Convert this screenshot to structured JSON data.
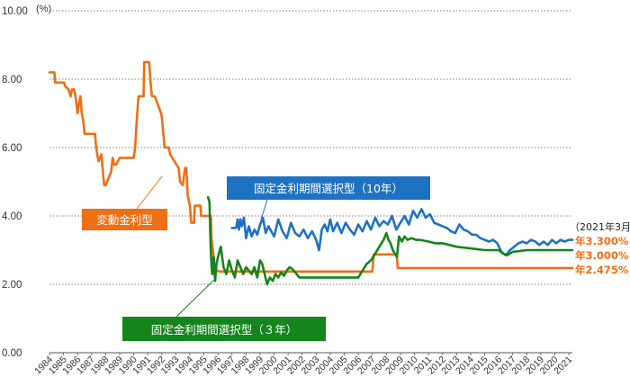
{
  "chart_data": {
    "type": "line",
    "unit_label": "(%)",
    "ylim": [
      0,
      10
    ],
    "yticks": [
      "0.00",
      "2.00",
      "4.00",
      "6.00",
      "8.00",
      "10.00"
    ],
    "xlim": [
      1984,
      2021.25
    ],
    "xticks": [
      1984,
      1985,
      1986,
      1987,
      1988,
      1989,
      1990,
      1991,
      1992,
      1993,
      1994,
      1995,
      1996,
      1997,
      1998,
      1999,
      2000,
      2001,
      2002,
      2003,
      2004,
      2005,
      2006,
      2007,
      2008,
      2009,
      2010,
      2011,
      2012,
      2013,
      2014,
      2015,
      2016,
      2017,
      2018,
      2019,
      2020,
      2021
    ],
    "grid": "horizontal dotted",
    "colors": {
      "variable": "#ee6f14",
      "fixed10": "#1f72c2",
      "fixed3": "#16841c"
    },
    "series": [
      {
        "name": "変動金利型",
        "color": "#ee6f14",
        "x": [
          1984.0,
          1984.35,
          1984.4,
          1985.05,
          1985.1,
          1985.35,
          1985.5,
          1985.6,
          1985.75,
          1985.85,
          1986.0,
          1986.1,
          1986.2,
          1986.3,
          1986.4,
          1986.5,
          1986.6,
          1986.65,
          1987.25,
          1987.3,
          1987.4,
          1987.5,
          1987.7,
          1987.8,
          1987.9,
          1988.0,
          1988.4,
          1988.5,
          1988.6,
          1988.75,
          1989.0,
          1989.05,
          1990.0,
          1990.1,
          1990.2,
          1990.3,
          1990.35,
          1990.7,
          1990.75,
          1991.1,
          1991.2,
          1991.3,
          1991.45,
          1991.5,
          1991.95,
          1992.0,
          1992.2,
          1992.3,
          1992.4,
          1992.5,
          1992.6,
          1993.2,
          1993.3,
          1993.5,
          1993.65,
          1993.75,
          1993.85,
          1994.0,
          1994.1,
          1994.2,
          1994.3,
          1994.35,
          1994.75,
          1994.8,
          1995.0,
          1995.05,
          1995.5,
          1995.55,
          1995.7,
          1995.75,
          1996.0,
          1996.05,
          2007.0,
          2007.1,
          2008.75,
          2008.8,
          2021.25
        ],
        "y": [
          8.2,
          8.2,
          7.9,
          7.9,
          7.8,
          7.7,
          7.5,
          7.7,
          7.7,
          7.5,
          7.0,
          7.3,
          7.5,
          7.0,
          6.8,
          6.4,
          6.4,
          6.4,
          6.4,
          6.1,
          5.8,
          5.6,
          5.8,
          5.3,
          4.9,
          4.9,
          5.3,
          5.7,
          5.5,
          5.5,
          5.7,
          5.7,
          5.7,
          6.0,
          6.7,
          7.3,
          7.5,
          7.5,
          8.5,
          8.5,
          7.9,
          7.5,
          7.5,
          7.5,
          7.0,
          6.9,
          6.0,
          6.0,
          6.0,
          6.0,
          5.8,
          5.4,
          5.0,
          4.9,
          5.4,
          5.4,
          4.6,
          4.3,
          3.8,
          3.8,
          3.8,
          4.3,
          4.3,
          4.0,
          4.0,
          4.0,
          4.0,
          3.3,
          2.8,
          2.4,
          2.4,
          2.375,
          2.375,
          2.875,
          2.875,
          2.475,
          2.475
        ]
      },
      {
        "name": "固定金利期間選択型（10年）",
        "color": "#1f72c2",
        "x": [
          1997.0,
          1997.3,
          1997.4,
          1997.5,
          1997.6,
          1997.7,
          1997.85,
          1998.0,
          1998.2,
          1998.4,
          1998.6,
          1998.8,
          1999.0,
          1999.2,
          1999.4,
          1999.6,
          1999.8,
          2000.0,
          2000.3,
          2000.6,
          2000.9,
          2001.2,
          2001.5,
          2001.8,
          2002.1,
          2002.4,
          2002.7,
          2003.0,
          2003.2,
          2003.4,
          2003.6,
          2003.8,
          2004.0,
          2004.2,
          2004.5,
          2004.8,
          2005.1,
          2005.4,
          2005.7,
          2006.0,
          2006.3,
          2006.6,
          2006.9,
          2007.2,
          2007.5,
          2007.8,
          2008.1,
          2008.4,
          2008.7,
          2009.0,
          2009.3,
          2009.6,
          2009.9,
          2010.2,
          2010.5,
          2010.8,
          2011.1,
          2011.4,
          2011.7,
          2012.0,
          2012.3,
          2012.6,
          2012.9,
          2013.2,
          2013.5,
          2013.8,
          2014.1,
          2014.4,
          2014.7,
          2015.0,
          2015.3,
          2015.6,
          2015.9,
          2016.2,
          2016.5,
          2016.8,
          2017.1,
          2017.4,
          2017.7,
          2018.0,
          2018.3,
          2018.6,
          2018.9,
          2019.2,
          2019.5,
          2019.8,
          2020.1,
          2020.4,
          2020.7,
          2021.0,
          2021.25
        ],
        "y": [
          3.65,
          3.65,
          3.9,
          3.6,
          3.9,
          3.7,
          3.95,
          3.35,
          3.7,
          3.4,
          3.6,
          3.45,
          3.75,
          3.95,
          3.5,
          3.7,
          3.55,
          3.4,
          3.9,
          3.55,
          3.35,
          3.8,
          3.5,
          3.4,
          3.6,
          3.35,
          3.55,
          3.3,
          3.0,
          3.6,
          3.75,
          3.55,
          3.9,
          3.55,
          3.8,
          3.5,
          3.8,
          3.6,
          3.45,
          3.75,
          3.55,
          3.85,
          3.6,
          3.95,
          3.7,
          3.85,
          3.75,
          4.0,
          3.6,
          3.8,
          4.0,
          3.75,
          4.15,
          3.95,
          4.2,
          3.95,
          4.05,
          3.8,
          3.75,
          3.7,
          3.65,
          3.55,
          3.5,
          3.75,
          3.6,
          3.55,
          3.45,
          3.45,
          3.35,
          3.3,
          3.25,
          3.3,
          3.2,
          2.95,
          2.85,
          3.0,
          3.1,
          3.2,
          3.25,
          3.2,
          3.3,
          3.25,
          3.15,
          3.25,
          3.15,
          3.3,
          3.2,
          3.3,
          3.25,
          3.3,
          3.3
        ]
      },
      {
        "name": "固定金利期間選択型（３年）",
        "color": "#16841c",
        "x": [
          1995.3,
          1995.4,
          1995.45,
          1995.5,
          1995.55,
          1995.6,
          1995.7,
          1995.8,
          1995.9,
          1996.0,
          1996.2,
          1996.4,
          1996.6,
          1996.8,
          1997.0,
          1997.2,
          1997.4,
          1997.6,
          1997.8,
          1998.0,
          1998.2,
          1998.4,
          1998.6,
          1998.8,
          1999.0,
          1999.15,
          1999.3,
          1999.5,
          1999.7,
          1999.9,
          2000.1,
          2000.3,
          2000.5,
          2000.7,
          2000.9,
          2001.1,
          2001.3,
          2001.5,
          2001.8,
          2002.0,
          2006.0,
          2006.3,
          2006.6,
          2006.9,
          2007.2,
          2007.5,
          2007.8,
          2008.0,
          2008.15,
          2008.3,
          2008.45,
          2008.6,
          2008.75,
          2008.9,
          2009.1,
          2009.3,
          2009.5,
          2009.8,
          2010.1,
          2010.4,
          2011.0,
          2011.5,
          2012.0,
          2013.0,
          2014.0,
          2015.0,
          2016.0,
          2016.3,
          2016.6,
          2016.8,
          2017.0,
          2018.0,
          2019.0,
          2020.0,
          2021.0,
          2021.25
        ],
        "y": [
          4.55,
          4.4,
          3.5,
          2.9,
          2.5,
          2.3,
          2.8,
          2.1,
          2.6,
          2.8,
          3.1,
          2.5,
          2.3,
          2.7,
          2.4,
          2.2,
          2.7,
          2.5,
          2.3,
          2.5,
          2.4,
          2.3,
          2.5,
          2.2,
          2.7,
          2.6,
          2.35,
          2.0,
          2.2,
          2.1,
          2.3,
          2.2,
          2.35,
          2.25,
          2.4,
          2.5,
          2.45,
          2.35,
          2.2,
          2.2,
          2.2,
          2.4,
          2.6,
          2.7,
          2.9,
          3.1,
          3.3,
          3.5,
          3.3,
          3.2,
          3.0,
          2.9,
          2.8,
          3.4,
          3.25,
          3.4,
          3.3,
          3.35,
          3.3,
          3.3,
          3.25,
          3.2,
          3.2,
          3.1,
          3.05,
          3.0,
          3.0,
          2.9,
          2.85,
          2.9,
          2.95,
          3.0,
          3.0,
          3.0,
          3.0,
          3.0
        ]
      }
    ],
    "annotations": {
      "variable_label": "変動金利型",
      "fixed10_label": "固定金利期間選択型（10年）",
      "fixed3_label": "固定金利期間選択型（３年）",
      "date_note": "（2021年3月）",
      "end_fixed10": "年3.300%",
      "end_fixed3": "年3.000%",
      "end_variable": "年2.475%"
    }
  }
}
